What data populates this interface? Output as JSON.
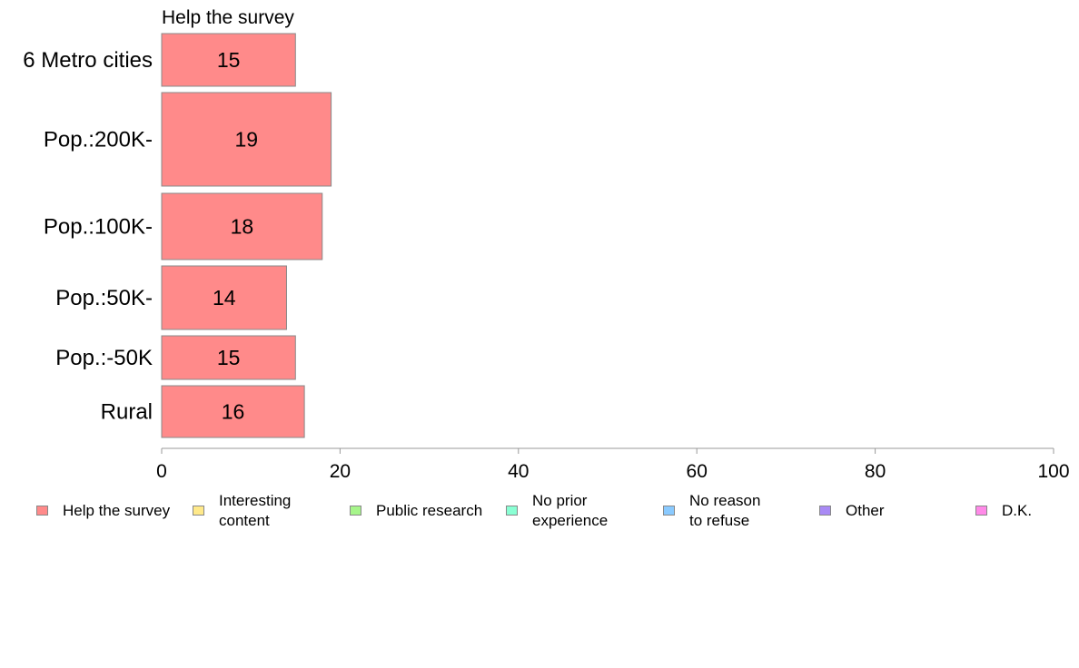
{
  "chart_data": {
    "type": "bar",
    "orientation": "horizontal",
    "stacked": true,
    "title": "Help the survey",
    "categories": [
      "6 Metro cities",
      "Pop.:200K-",
      "Pop.:100K-",
      "Pop.:50K-",
      "Pop.:-50K",
      "Rural"
    ],
    "series": [
      {
        "name": "Help the survey",
        "values": [
          15,
          19,
          18,
          14,
          15,
          16
        ],
        "color": "#ff8a8a"
      }
    ],
    "data_labels": [
      "15",
      "19",
      "18",
      "14",
      "15",
      "16"
    ],
    "xlim": [
      0,
      100
    ],
    "xticks": [
      0,
      20,
      40,
      60,
      80,
      100
    ],
    "tick_labels": [
      "0",
      "20",
      "40",
      "60",
      "80",
      "100"
    ],
    "grid": false,
    "legend_position": "bottom",
    "legend": [
      {
        "label": "Help the survey",
        "color": "#ff8a8a"
      },
      {
        "label": "Interesting\ncontent",
        "color": "#ffe98a"
      },
      {
        "label": "Public research",
        "color": "#a6f58a"
      },
      {
        "label": "No prior\nexperience",
        "color": "#8affd4"
      },
      {
        "label": "No reason\nto refuse",
        "color": "#8acaff"
      },
      {
        "label": "Other",
        "color": "#a98af5"
      },
      {
        "label": "D.K.",
        "color": "#ff8ae8"
      }
    ]
  }
}
